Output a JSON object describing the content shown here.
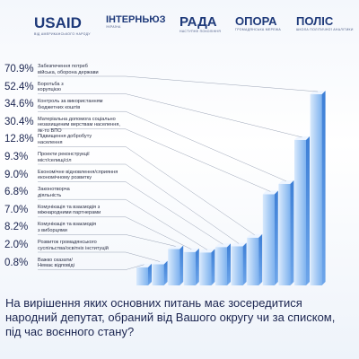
{
  "logos": [
    {
      "name": "USAID",
      "sub": "ВІД АМЕРИКАНСЬКОГО НАРОДУ"
    },
    {
      "name": "ІНТЕРНЬЮЗ",
      "sub": "УКРАЇНА"
    },
    {
      "name": "РАДА",
      "sub": "НАСТУПНЕ ПОКОЛІННЯ"
    },
    {
      "name": "ОПОРА",
      "sub": "ГРОМАДЯНСЬКА МЕРЕЖА"
    },
    {
      "name": "ПОЛІС",
      "sub": "ШКОЛА ПОЛІТИЧНОЇ АНАЛІТИКИ"
    }
  ],
  "chart_data": {
    "type": "bar",
    "title": "На вирішення яких основних питань має зосередитися народний депутат, обраний від Вашого округу чи за списком, під час воєнного стану?",
    "color": "#5b9be6",
    "categories": [
      "Забезпечення потреб\nвійська, оборона держави",
      "Боротьба з\nкорупцією",
      "Контроль за використанням\nбюджетних коштів",
      "Матеріальна допомога соціально\nнезахищеним верствам населення, як-то ВПО",
      "Підвищення добробуту\nнаселення",
      "Проекти реконструкції\nміст/селищ/сіл",
      "Економічне відновлення/сприяння\nекономічному розвитку",
      "Законотворча\nдіяльність",
      "Комунікація та взаємодія з\nміжнародними партнерами",
      "Комунікація та взаємодія\nз виборцями",
      "Розвиток громадянського\nсуспільства/освітніх інституцій",
      "Важко сказати/\nНемає відповіді"
    ],
    "values": [
      70.9,
      52.4,
      34.6,
      30.4,
      12.8,
      9.3,
      9.0,
      6.8,
      7.0,
      8.2,
      2.0,
      0.8
    ],
    "value_labels": [
      "70.9%",
      "52.4%",
      "34.6%",
      "30.4%",
      "12.8%",
      "9.3%",
      "9.0%",
      "6.8%",
      "7.0%",
      "8.2%",
      "2.0%",
      "0.8%"
    ]
  }
}
